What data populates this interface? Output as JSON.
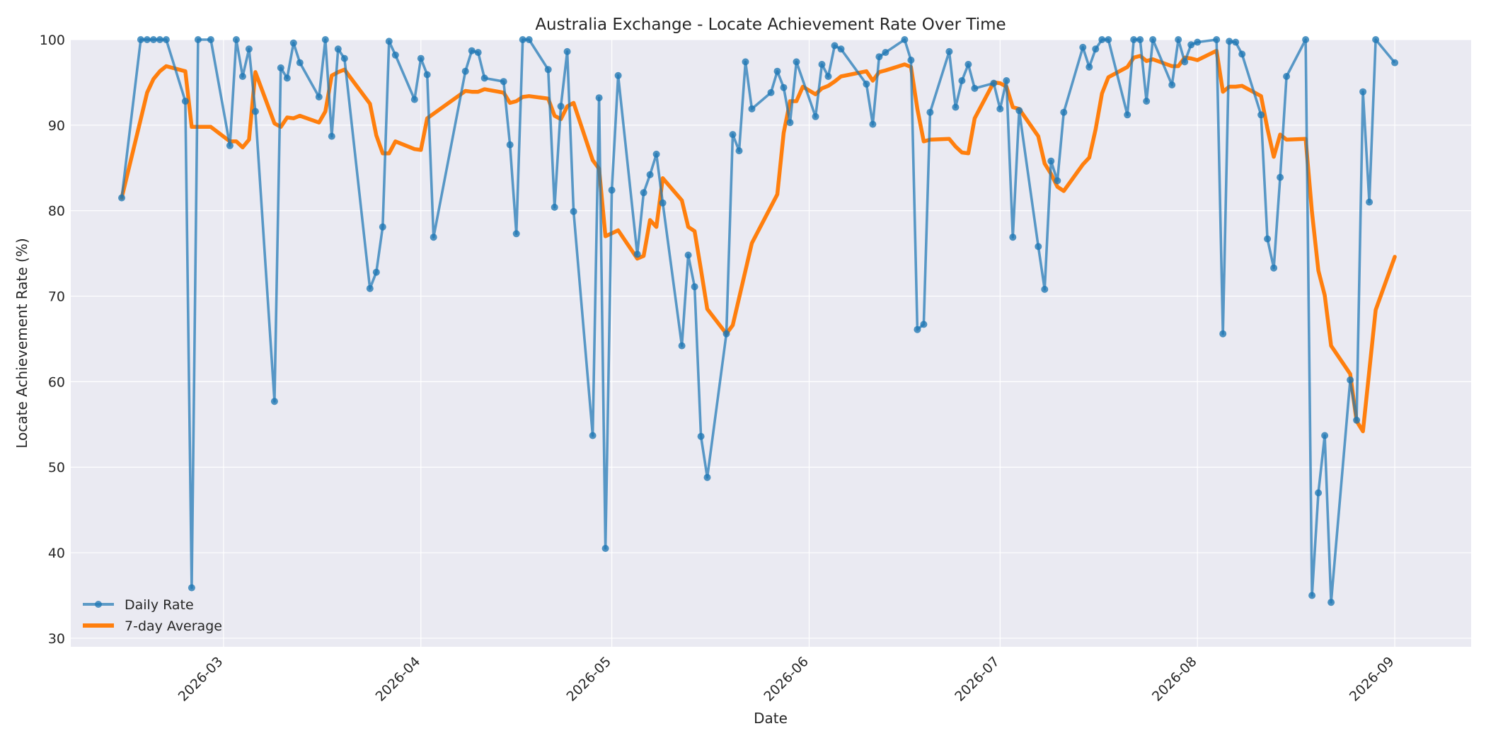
{
  "chart_data": {
    "type": "line",
    "title": "Australia Exchange - Locate Achievement Rate Over Time",
    "xlabel": "Date",
    "ylabel": "Locate Achievement Rate (%)",
    "xlim": [
      "2026-02-05",
      "2026-09-13"
    ],
    "ylim": [
      29,
      100
    ],
    "x_ticks": [
      "2026-03",
      "2026-04",
      "2026-05",
      "2026-06",
      "2026-07",
      "2026-08",
      "2026-09"
    ],
    "y_ticks": [
      30,
      40,
      50,
      60,
      70,
      80,
      90,
      100
    ],
    "grid": true,
    "legend_position": "lower-left",
    "colors": {
      "daily": "#1f77b4",
      "average": "#ff7f0e",
      "background": "#eaeaf2",
      "grid": "#ffffff"
    },
    "series": [
      {
        "name": "Daily Rate",
        "style": "line-markers",
        "points": [
          [
            "2026-02-13",
            81.5
          ],
          [
            "2026-02-16",
            100
          ],
          [
            "2026-02-17",
            100
          ],
          [
            "2026-02-18",
            100
          ],
          [
            "2026-02-19",
            100
          ],
          [
            "2026-02-20",
            100
          ],
          [
            "2026-02-23",
            92.8
          ],
          [
            "2026-02-24",
            35.9
          ],
          [
            "2026-02-25",
            100
          ],
          [
            "2026-02-27",
            100
          ],
          [
            "2026-03-02",
            87.6
          ],
          [
            "2026-03-03",
            100
          ],
          [
            "2026-03-04",
            95.7
          ],
          [
            "2026-03-05",
            98.9
          ],
          [
            "2026-03-06",
            91.6
          ],
          [
            "2026-03-09",
            57.7
          ],
          [
            "2026-03-10",
            96.7
          ],
          [
            "2026-03-11",
            95.5
          ],
          [
            "2026-03-12",
            99.6
          ],
          [
            "2026-03-13",
            97.3
          ],
          [
            "2026-03-16",
            93.3
          ],
          [
            "2026-03-17",
            100
          ],
          [
            "2026-03-18",
            88.7
          ],
          [
            "2026-03-19",
            98.9
          ],
          [
            "2026-03-20",
            97.8
          ],
          [
            "2026-03-24",
            70.9
          ],
          [
            "2026-03-25",
            72.8
          ],
          [
            "2026-03-26",
            78.1
          ],
          [
            "2026-03-27",
            99.8
          ],
          [
            "2026-03-28",
            98.2
          ],
          [
            "2026-03-31",
            93
          ],
          [
            "2026-04-01",
            97.8
          ],
          [
            "2026-04-02",
            95.9
          ],
          [
            "2026-04-03",
            76.9
          ],
          [
            "2026-04-08",
            96.3
          ],
          [
            "2026-04-09",
            98.7
          ],
          [
            "2026-04-10",
            98.5
          ],
          [
            "2026-04-11",
            95.5
          ],
          [
            "2026-04-14",
            95.1
          ],
          [
            "2026-04-15",
            87.7
          ],
          [
            "2026-04-16",
            77.3
          ],
          [
            "2026-04-17",
            100
          ],
          [
            "2026-04-18",
            100
          ],
          [
            "2026-04-21",
            96.5
          ],
          [
            "2026-04-22",
            80.4
          ],
          [
            "2026-04-23",
            92.2
          ],
          [
            "2026-04-24",
            98.6
          ],
          [
            "2026-04-25",
            79.9
          ],
          [
            "2026-04-28",
            53.7
          ],
          [
            "2026-04-29",
            93.2
          ],
          [
            "2026-04-30",
            40.5
          ],
          [
            "2026-05-01",
            82.4
          ],
          [
            "2026-05-02",
            95.8
          ],
          [
            "2026-05-05",
            74.9
          ],
          [
            "2026-05-06",
            82.1
          ],
          [
            "2026-05-07",
            84.2
          ],
          [
            "2026-05-08",
            86.6
          ],
          [
            "2026-05-09",
            80.9
          ],
          [
            "2026-05-12",
            64.2
          ],
          [
            "2026-05-13",
            74.8
          ],
          [
            "2026-05-14",
            71.1
          ],
          [
            "2026-05-15",
            53.6
          ],
          [
            "2026-05-16",
            48.8
          ],
          [
            "2026-05-19",
            65.6
          ],
          [
            "2026-05-20",
            88.9
          ],
          [
            "2026-05-21",
            87
          ],
          [
            "2026-05-22",
            97.4
          ],
          [
            "2026-05-23",
            91.9
          ],
          [
            "2026-05-26",
            93.8
          ],
          [
            "2026-05-27",
            96.3
          ],
          [
            "2026-05-28",
            94.4
          ],
          [
            "2026-05-29",
            90.3
          ],
          [
            "2026-05-30",
            97.4
          ],
          [
            "2026-06-02",
            91
          ],
          [
            "2026-06-03",
            97.1
          ],
          [
            "2026-06-04",
            95.7
          ],
          [
            "2026-06-05",
            99.3
          ],
          [
            "2026-06-06",
            98.9
          ],
          [
            "2026-06-10",
            94.8
          ],
          [
            "2026-06-11",
            90.1
          ],
          [
            "2026-06-12",
            98
          ],
          [
            "2026-06-13",
            98.5
          ],
          [
            "2026-06-16",
            100
          ],
          [
            "2026-06-17",
            97.6
          ],
          [
            "2026-06-18",
            66.1
          ],
          [
            "2026-06-19",
            66.7
          ],
          [
            "2026-06-20",
            91.5
          ],
          [
            "2026-06-23",
            98.6
          ],
          [
            "2026-06-24",
            92.1
          ],
          [
            "2026-06-25",
            95.2
          ],
          [
            "2026-06-26",
            97.1
          ],
          [
            "2026-06-27",
            94.3
          ],
          [
            "2026-06-30",
            94.9
          ],
          [
            "2026-07-01",
            91.9
          ],
          [
            "2026-07-02",
            95.2
          ],
          [
            "2026-07-03",
            76.9
          ],
          [
            "2026-07-04",
            91.7
          ],
          [
            "2026-07-07",
            75.8
          ],
          [
            "2026-07-08",
            70.8
          ],
          [
            "2026-07-09",
            85.8
          ],
          [
            "2026-07-10",
            83.5
          ],
          [
            "2026-07-11",
            91.5
          ],
          [
            "2026-07-14",
            99.1
          ],
          [
            "2026-07-15",
            96.8
          ],
          [
            "2026-07-16",
            98.9
          ],
          [
            "2026-07-17",
            100
          ],
          [
            "2026-07-18",
            100
          ],
          [
            "2026-07-21",
            91.2
          ],
          [
            "2026-07-22",
            100
          ],
          [
            "2026-07-23",
            100
          ],
          [
            "2026-07-24",
            92.8
          ],
          [
            "2026-07-25",
            100
          ],
          [
            "2026-07-28",
            94.7
          ],
          [
            "2026-07-29",
            100
          ],
          [
            "2026-07-30",
            97.4
          ],
          [
            "2026-07-31",
            99.4
          ],
          [
            "2026-08-01",
            99.7
          ],
          [
            "2026-08-04",
            100
          ],
          [
            "2026-08-05",
            65.6
          ],
          [
            "2026-08-06",
            99.8
          ],
          [
            "2026-08-07",
            99.7
          ],
          [
            "2026-08-08",
            98.3
          ],
          [
            "2026-08-11",
            91.2
          ],
          [
            "2026-08-12",
            76.7
          ],
          [
            "2026-08-13",
            73.3
          ],
          [
            "2026-08-14",
            83.9
          ],
          [
            "2026-08-15",
            95.7
          ],
          [
            "2026-08-18",
            100
          ],
          [
            "2026-08-19",
            35
          ],
          [
            "2026-08-20",
            47
          ],
          [
            "2026-08-21",
            53.7
          ],
          [
            "2026-08-22",
            34.2
          ],
          [
            "2026-08-25",
            60.2
          ],
          [
            "2026-08-26",
            55.5
          ],
          [
            "2026-08-27",
            93.9
          ],
          [
            "2026-08-28",
            81
          ],
          [
            "2026-08-29",
            100
          ],
          [
            "2026-09-01",
            97.3
          ]
        ]
      },
      {
        "name": "7-day Average",
        "style": "thick-line",
        "points": [
          [
            "2026-02-13",
            81.5
          ],
          [
            "2026-02-16",
            90.7
          ],
          [
            "2026-02-17",
            93.8
          ],
          [
            "2026-02-18",
            95.4
          ],
          [
            "2026-02-19",
            96.3
          ],
          [
            "2026-02-20",
            96.9
          ],
          [
            "2026-02-23",
            96.3
          ],
          [
            "2026-02-24",
            89.8
          ],
          [
            "2026-02-25",
            89.8
          ],
          [
            "2026-02-27",
            89.8
          ],
          [
            "2026-03-02",
            88.1
          ],
          [
            "2026-03-03",
            88.1
          ],
          [
            "2026-03-04",
            87.4
          ],
          [
            "2026-03-05",
            88.3
          ],
          [
            "2026-03-06",
            96.2
          ],
          [
            "2026-03-09",
            90.2
          ],
          [
            "2026-03-10",
            89.8
          ],
          [
            "2026-03-11",
            90.9
          ],
          [
            "2026-03-12",
            90.8
          ],
          [
            "2026-03-13",
            91.1
          ],
          [
            "2026-03-16",
            90.3
          ],
          [
            "2026-03-17",
            91.6
          ],
          [
            "2026-03-18",
            95.8
          ],
          [
            "2026-03-19",
            96.2
          ],
          [
            "2026-03-20",
            96.5
          ],
          [
            "2026-03-24",
            92.5
          ],
          [
            "2026-03-25",
            88.8
          ],
          [
            "2026-03-26",
            86.7
          ],
          [
            "2026-03-27",
            86.7
          ],
          [
            "2026-03-28",
            88.1
          ],
          [
            "2026-03-31",
            87.2
          ],
          [
            "2026-04-01",
            87.1
          ],
          [
            "2026-04-02",
            90.8
          ],
          [
            "2026-04-08",
            94
          ],
          [
            "2026-04-09",
            93.9
          ],
          [
            "2026-04-10",
            93.9
          ],
          [
            "2026-04-11",
            94.2
          ],
          [
            "2026-04-14",
            93.8
          ],
          [
            "2026-04-15",
            92.6
          ],
          [
            "2026-04-16",
            92.8
          ],
          [
            "2026-04-17",
            93.3
          ],
          [
            "2026-04-18",
            93.4
          ],
          [
            "2026-04-21",
            93.1
          ],
          [
            "2026-04-22",
            91.1
          ],
          [
            "2026-04-23",
            90.7
          ],
          [
            "2026-04-24",
            92.2
          ],
          [
            "2026-04-25",
            92.6
          ],
          [
            "2026-04-28",
            85.9
          ],
          [
            "2026-04-29",
            84.9
          ],
          [
            "2026-04-30",
            77
          ],
          [
            "2026-05-02",
            77.7
          ],
          [
            "2026-05-05",
            74.4
          ],
          [
            "2026-05-06",
            74.7
          ],
          [
            "2026-05-07",
            78.9
          ],
          [
            "2026-05-08",
            78.1
          ],
          [
            "2026-05-09",
            83.8
          ],
          [
            "2026-05-12",
            81.2
          ],
          [
            "2026-05-13",
            78.1
          ],
          [
            "2026-05-14",
            77.6
          ],
          [
            "2026-05-15",
            73.1
          ],
          [
            "2026-05-16",
            68.5
          ],
          [
            "2026-05-19",
            65.6
          ],
          [
            "2026-05-20",
            66.6
          ],
          [
            "2026-05-23",
            76.2
          ],
          [
            "2026-05-27",
            81.9
          ],
          [
            "2026-05-28",
            89.1
          ],
          [
            "2026-05-29",
            92.8
          ],
          [
            "2026-05-30",
            92.8
          ],
          [
            "2026-05-31",
            94.5
          ],
          [
            "2026-06-02",
            93.6
          ],
          [
            "2026-06-03",
            94.3
          ],
          [
            "2026-06-04",
            94.6
          ],
          [
            "2026-06-05",
            95.1
          ],
          [
            "2026-06-06",
            95.7
          ],
          [
            "2026-06-10",
            96.3
          ],
          [
            "2026-06-11",
            95.2
          ],
          [
            "2026-06-12",
            96.2
          ],
          [
            "2026-06-13",
            96.4
          ],
          [
            "2026-06-16",
            97.1
          ],
          [
            "2026-06-17",
            96.8
          ],
          [
            "2026-06-18",
            91.9
          ],
          [
            "2026-06-19",
            88.1
          ],
          [
            "2026-06-20",
            88.3
          ],
          [
            "2026-06-23",
            88.4
          ],
          [
            "2026-06-24",
            87.5
          ],
          [
            "2026-06-25",
            86.8
          ],
          [
            "2026-06-26",
            86.7
          ],
          [
            "2026-06-27",
            90.8
          ],
          [
            "2026-06-30",
            95
          ],
          [
            "2026-07-01",
            94.9
          ],
          [
            "2026-07-02",
            94.5
          ],
          [
            "2026-07-03",
            92.1
          ],
          [
            "2026-07-04",
            91.9
          ],
          [
            "2026-07-07",
            88.7
          ],
          [
            "2026-07-08",
            85.5
          ],
          [
            "2026-07-09",
            84.3
          ],
          [
            "2026-07-10",
            82.8
          ],
          [
            "2026-07-11",
            82.3
          ],
          [
            "2026-07-14",
            85.4
          ],
          [
            "2026-07-15",
            86.2
          ],
          [
            "2026-07-16",
            89.5
          ],
          [
            "2026-07-17",
            93.7
          ],
          [
            "2026-07-18",
            95.6
          ],
          [
            "2026-07-21",
            96.8
          ],
          [
            "2026-07-22",
            97.9
          ],
          [
            "2026-07-23",
            98.1
          ],
          [
            "2026-07-24",
            97.5
          ],
          [
            "2026-07-25",
            97.7
          ],
          [
            "2026-07-28",
            96.9
          ],
          [
            "2026-07-29",
            96.9
          ],
          [
            "2026-07-30",
            97.9
          ],
          [
            "2026-07-31",
            97.8
          ],
          [
            "2026-08-01",
            97.6
          ],
          [
            "2026-08-04",
            98.7
          ],
          [
            "2026-08-05",
            93.9
          ],
          [
            "2026-08-06",
            94.5
          ],
          [
            "2026-08-07",
            94.5
          ],
          [
            "2026-08-08",
            94.6
          ],
          [
            "2026-08-11",
            93.4
          ],
          [
            "2026-08-12",
            89.6
          ],
          [
            "2026-08-13",
            86.3
          ],
          [
            "2026-08-14",
            88.9
          ],
          [
            "2026-08-15",
            88.3
          ],
          [
            "2026-08-18",
            88.4
          ],
          [
            "2026-08-19",
            79.8
          ],
          [
            "2026-08-20",
            73
          ],
          [
            "2026-08-21",
            70.1
          ],
          [
            "2026-08-22",
            64.2
          ],
          [
            "2026-08-25",
            60.9
          ],
          [
            "2026-08-26",
            55.4
          ],
          [
            "2026-08-27",
            54.2
          ],
          [
            "2026-08-29",
            68.4
          ],
          [
            "2026-09-01",
            74.6
          ]
        ]
      }
    ]
  }
}
